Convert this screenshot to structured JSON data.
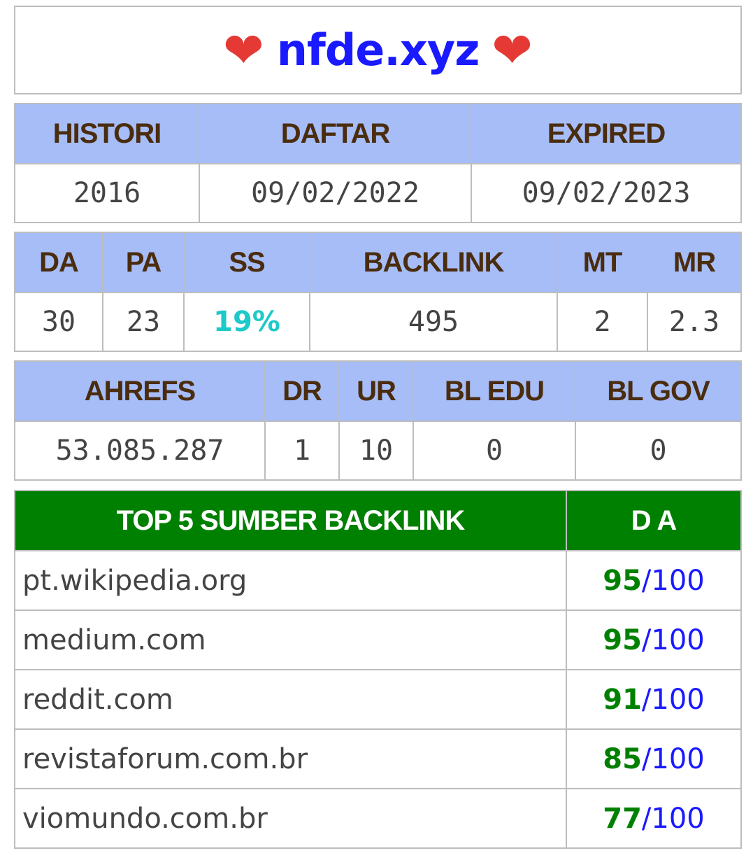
{
  "header": {
    "domain": "nfde.xyz",
    "heart": "❤"
  },
  "registration": {
    "headers": [
      "HISTORI",
      "DAFTAR",
      "EXPIRED"
    ],
    "values": [
      "2016",
      "09/02/2022",
      "09/02/2023"
    ]
  },
  "metrics": {
    "headers": [
      "DA",
      "PA",
      "SS",
      "BACKLINK",
      "MT",
      "MR"
    ],
    "values": [
      "30",
      "23",
      "19%",
      "495",
      "2",
      "2.3"
    ]
  },
  "ahrefs": {
    "headers": [
      "AHREFS",
      "DR",
      "UR",
      "BL EDU",
      "BL GOV"
    ],
    "values": [
      "53.085.287",
      "1",
      "10",
      "0",
      "0"
    ]
  },
  "top_backlinks": {
    "header_source": "TOP 5 SUMBER BACKLINK",
    "header_da": "D A",
    "rows": [
      {
        "source": "pt.wikipedia.org",
        "score": "95",
        "max": "/100"
      },
      {
        "source": "medium.com",
        "score": "95",
        "max": "/100"
      },
      {
        "source": "reddit.com",
        "score": "91",
        "max": "/100"
      },
      {
        "source": "revistaforum.com.br",
        "score": "85",
        "max": "/100"
      },
      {
        "source": "viomundo.com.br",
        "score": "77",
        "max": "/100"
      }
    ]
  }
}
